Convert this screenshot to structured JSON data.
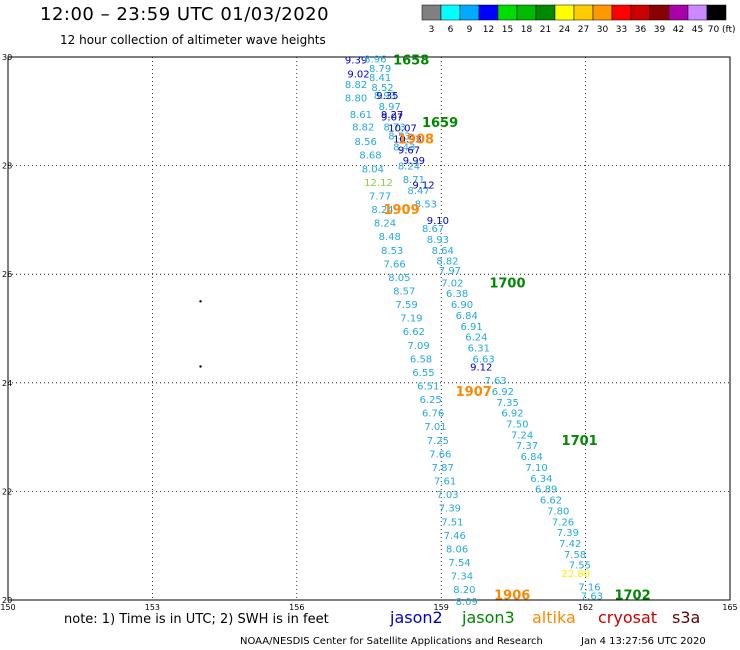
{
  "header": {
    "title": "12:00 – 23:59 UTC 01/03/2020",
    "subtitle": "12 hour collection of altimeter wave heights"
  },
  "color_scale": {
    "unit_label": "(ft)",
    "bins": [
      {
        "label": "3",
        "color": "#808080"
      },
      {
        "label": "6",
        "color": "#00ffff"
      },
      {
        "label": "9",
        "color": "#00aaff"
      },
      {
        "label": "12",
        "color": "#0000ff"
      },
      {
        "label": "15",
        "color": "#00dd00"
      },
      {
        "label": "18",
        "color": "#00bb00"
      },
      {
        "label": "21",
        "color": "#008800"
      },
      {
        "label": "24",
        "color": "#ffff00"
      },
      {
        "label": "27",
        "color": "#ffcc00"
      },
      {
        "label": "30",
        "color": "#ff9900"
      },
      {
        "label": "33",
        "color": "#ff0000"
      },
      {
        "label": "36",
        "color": "#cc0000"
      },
      {
        "label": "39",
        "color": "#880000"
      },
      {
        "label": "42",
        "color": "#aa00aa"
      },
      {
        "label": "45",
        "color": "#cc88ff"
      },
      {
        "label": "70",
        "color": "#000000"
      }
    ]
  },
  "map": {
    "lon_range": [
      150,
      165
    ],
    "lat_range": [
      20,
      30
    ],
    "lon_ticks": [
      "150",
      "153",
      "156",
      "159",
      "162",
      "165"
    ],
    "lat_ticks": [
      "20",
      "22",
      "24",
      "26",
      "28",
      "30"
    ],
    "islands": [
      {
        "lon": 154.0,
        "lat": 25.5
      },
      {
        "lon": 154.0,
        "lat": 24.3
      }
    ]
  },
  "colors": {
    "jason2": "#0000cc",
    "jason3": "#008800",
    "altika": "#ff8800",
    "cryosat": "#cc0000",
    "s3a": "#660000",
    "swh_main": "#22aadd",
    "swh_high": "#0000cc",
    "swh_extreme": "#ffee00",
    "swh_green": "#88cc44"
  },
  "time_labels": [
    {
      "text": "1658",
      "lon": 158.0,
      "lat": 29.95,
      "color_key": "jason3"
    },
    {
      "text": "1659",
      "lon": 158.6,
      "lat": 28.8,
      "color_key": "jason3"
    },
    {
      "text": "1908",
      "lon": 158.1,
      "lat": 28.5,
      "color_key": "altika"
    },
    {
      "text": "1909",
      "lon": 157.8,
      "lat": 27.2,
      "color_key": "altika"
    },
    {
      "text": "1700",
      "lon": 160.0,
      "lat": 25.85,
      "color_key": "jason3"
    },
    {
      "text": "1907",
      "lon": 159.3,
      "lat": 23.85,
      "color_key": "altika"
    },
    {
      "text": "1701",
      "lon": 161.5,
      "lat": 22.95,
      "color_key": "jason3"
    },
    {
      "text": "1906",
      "lon": 160.1,
      "lat": 20.1,
      "color_key": "altika"
    },
    {
      "text": "1702",
      "lon": 162.6,
      "lat": 20.1,
      "color_key": "jason3"
    }
  ],
  "track_jason3": [
    {
      "lon": 157.4,
      "lat": 29.97,
      "v": "8.96"
    },
    {
      "lon": 157.5,
      "lat": 29.8,
      "v": "8.79"
    },
    {
      "lon": 157.5,
      "lat": 29.63,
      "v": "8.41"
    },
    {
      "lon": 157.55,
      "lat": 29.45,
      "v": "8.52"
    },
    {
      "lon": 157.6,
      "lat": 29.3,
      "v": "8.93"
    },
    {
      "lon": 157.7,
      "lat": 29.1,
      "v": "8.97"
    },
    {
      "lon": 157.75,
      "lat": 28.9,
      "v": "9.07"
    },
    {
      "lon": 157.8,
      "lat": 28.72,
      "v": "8.73"
    },
    {
      "lon": 157.9,
      "lat": 28.55,
      "v": "8.53"
    },
    {
      "lon": 158.0,
      "lat": 28.35,
      "v": "8.43"
    },
    {
      "lon": 158.1,
      "lat": 28.0,
      "v": "8.24"
    },
    {
      "lon": 158.2,
      "lat": 27.75,
      "v": "8.71"
    },
    {
      "lon": 158.3,
      "lat": 27.55,
      "v": "8.47"
    },
    {
      "lon": 158.45,
      "lat": 27.3,
      "v": "8.53"
    },
    {
      "lon": 158.6,
      "lat": 26.85,
      "v": "8.67"
    },
    {
      "lon": 158.7,
      "lat": 26.65,
      "v": "8.93"
    },
    {
      "lon": 158.8,
      "lat": 26.45,
      "v": "8.64"
    },
    {
      "lon": 158.9,
      "lat": 26.25,
      "v": "8.82"
    },
    {
      "lon": 158.95,
      "lat": 26.08,
      "v": "7.97"
    },
    {
      "lon": 159.0,
      "lat": 25.85,
      "v": "7.02"
    },
    {
      "lon": 159.1,
      "lat": 25.65,
      "v": "6.38"
    },
    {
      "lon": 159.2,
      "lat": 25.45,
      "v": "6.90"
    },
    {
      "lon": 159.3,
      "lat": 25.25,
      "v": "6.84"
    },
    {
      "lon": 159.4,
      "lat": 25.05,
      "v": "6.91"
    },
    {
      "lon": 159.5,
      "lat": 24.85,
      "v": "6.24"
    },
    {
      "lon": 159.55,
      "lat": 24.65,
      "v": "6.31"
    },
    {
      "lon": 159.65,
      "lat": 24.45,
      "v": "6.63"
    },
    {
      "lon": 159.9,
      "lat": 24.05,
      "v": "7.63"
    },
    {
      "lon": 160.05,
      "lat": 23.85,
      "v": "6.92"
    },
    {
      "lon": 160.15,
      "lat": 23.65,
      "v": "7.35"
    },
    {
      "lon": 160.25,
      "lat": 23.45,
      "v": "6.92"
    },
    {
      "lon": 160.35,
      "lat": 23.25,
      "v": "7.50"
    },
    {
      "lon": 160.45,
      "lat": 23.05,
      "v": "7.24"
    },
    {
      "lon": 160.55,
      "lat": 22.85,
      "v": "7.37"
    },
    {
      "lon": 160.65,
      "lat": 22.65,
      "v": "6.84"
    },
    {
      "lon": 160.75,
      "lat": 22.45,
      "v": "7.10"
    },
    {
      "lon": 160.85,
      "lat": 22.25,
      "v": "6.34"
    },
    {
      "lon": 160.95,
      "lat": 22.05,
      "v": "6.89"
    },
    {
      "lon": 161.05,
      "lat": 21.85,
      "v": "6.62"
    },
    {
      "lon": 161.2,
      "lat": 21.65,
      "v": "7.80"
    },
    {
      "lon": 161.3,
      "lat": 21.45,
      "v": "7.26"
    },
    {
      "lon": 161.4,
      "lat": 21.25,
      "v": "7.39"
    },
    {
      "lon": 161.45,
      "lat": 21.05,
      "v": "7.42"
    },
    {
      "lon": 161.55,
      "lat": 20.85,
      "v": "7.58"
    },
    {
      "lon": 161.65,
      "lat": 20.65,
      "v": "7.55"
    },
    {
      "lon": 161.85,
      "lat": 20.25,
      "v": "7.16"
    },
    {
      "lon": 161.9,
      "lat": 20.08,
      "v": "7.63"
    }
  ],
  "track_altika": [
    {
      "lon": 157.0,
      "lat": 29.95,
      "v": "9.39"
    },
    {
      "lon": 157.05,
      "lat": 29.7,
      "v": "9.02"
    },
    {
      "lon": 157.0,
      "lat": 29.5,
      "v": "8.82"
    },
    {
      "lon": 157.0,
      "lat": 29.25,
      "v": "8.80"
    },
    {
      "lon": 157.1,
      "lat": 28.95,
      "v": "8.61"
    },
    {
      "lon": 157.15,
      "lat": 28.72,
      "v": "8.82"
    },
    {
      "lon": 157.2,
      "lat": 28.45,
      "v": "8.56"
    },
    {
      "lon": 157.3,
      "lat": 28.2,
      "v": "8.68"
    },
    {
      "lon": 157.35,
      "lat": 27.95,
      "v": "8.04"
    },
    {
      "lon": 157.4,
      "lat": 27.7,
      "v": "12.12"
    },
    {
      "lon": 157.5,
      "lat": 27.45,
      "v": "7.77"
    },
    {
      "lon": 157.55,
      "lat": 27.2,
      "v": "8.24"
    },
    {
      "lon": 157.6,
      "lat": 26.95,
      "v": "8.24"
    },
    {
      "lon": 157.7,
      "lat": 26.7,
      "v": "8.48"
    },
    {
      "lon": 157.75,
      "lat": 26.45,
      "v": "8.53"
    },
    {
      "lon": 157.8,
      "lat": 26.2,
      "v": "7.66"
    },
    {
      "lon": 157.9,
      "lat": 25.95,
      "v": "8.05"
    },
    {
      "lon": 158.0,
      "lat": 25.7,
      "v": "8.57"
    },
    {
      "lon": 158.05,
      "lat": 25.45,
      "v": "7.59"
    },
    {
      "lon": 158.15,
      "lat": 25.2,
      "v": "7.19"
    },
    {
      "lon": 158.2,
      "lat": 24.95,
      "v": "6.62"
    },
    {
      "lon": 158.3,
      "lat": 24.7,
      "v": "7.09"
    },
    {
      "lon": 158.35,
      "lat": 24.45,
      "v": "6.58"
    },
    {
      "lon": 158.4,
      "lat": 24.2,
      "v": "6.55"
    },
    {
      "lon": 158.5,
      "lat": 23.95,
      "v": "6.51"
    },
    {
      "lon": 158.55,
      "lat": 23.7,
      "v": "6.25"
    },
    {
      "lon": 158.6,
      "lat": 23.45,
      "v": "6.76"
    },
    {
      "lon": 158.65,
      "lat": 23.2,
      "v": "7.01"
    },
    {
      "lon": 158.7,
      "lat": 22.95,
      "v": "7.25"
    },
    {
      "lon": 158.75,
      "lat": 22.7,
      "v": "7.66"
    },
    {
      "lon": 158.8,
      "lat": 22.45,
      "v": "7.87"
    },
    {
      "lon": 158.85,
      "lat": 22.2,
      "v": "7.61"
    },
    {
      "lon": 158.9,
      "lat": 21.95,
      "v": "7.03"
    },
    {
      "lon": 158.95,
      "lat": 21.7,
      "v": "7.39"
    },
    {
      "lon": 159.0,
      "lat": 21.45,
      "v": "7.51"
    },
    {
      "lon": 159.05,
      "lat": 21.2,
      "v": "7.46"
    },
    {
      "lon": 159.1,
      "lat": 20.95,
      "v": "8.06"
    },
    {
      "lon": 159.15,
      "lat": 20.7,
      "v": "7.54"
    },
    {
      "lon": 159.2,
      "lat": 20.45,
      "v": "7.34"
    },
    {
      "lon": 159.25,
      "lat": 20.2,
      "v": "8.20"
    },
    {
      "lon": 159.3,
      "lat": 19.98,
      "v": "8.09"
    }
  ],
  "track_jason2": [
    {
      "lon": 157.65,
      "lat": 29.3,
      "v": "9.35"
    },
    {
      "lon": 157.75,
      "lat": 28.95,
      "v": "9.27"
    },
    {
      "lon": 157.9,
      "lat": 28.7,
      "v": "10.07"
    },
    {
      "lon": 158.0,
      "lat": 28.5,
      "v": "10.93"
    },
    {
      "lon": 158.1,
      "lat": 28.3,
      "v": "9.67"
    },
    {
      "lon": 158.2,
      "lat": 28.1,
      "v": "9.99"
    },
    {
      "lon": 158.4,
      "lat": 27.65,
      "v": "9.12"
    },
    {
      "lon": 158.7,
      "lat": 27.0,
      "v": "9.10"
    },
    {
      "lon": 159.6,
      "lat": 24.3,
      "v": "9.12"
    }
  ],
  "extreme_labels": [
    {
      "lon": 161.5,
      "lat": 20.5,
      "v": "22.80",
      "color_key": "swh_extreme"
    }
  ],
  "axes_labels": {},
  "satellites": [
    {
      "name": "jason2",
      "color_key": "jason2"
    },
    {
      "name": "jason3",
      "color_key": "jason3"
    },
    {
      "name": "altika",
      "color_key": "altika"
    },
    {
      "name": "cryosat",
      "color_key": "cryosat"
    },
    {
      "name": "s3a",
      "color_key": "s3a"
    }
  ],
  "note": "note:  1) Time is in UTC;  2) SWH is in feet",
  "footer": {
    "credit": "NOAA/NESDIS Center for Satellite Applications and Research",
    "timestamp": "Jan  4 13:27:56 UTC 2020"
  }
}
